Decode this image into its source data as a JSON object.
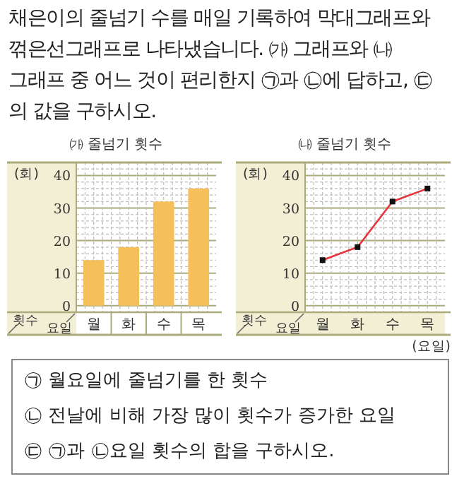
{
  "chart_data": [
    {
      "type": "other",
      "annotations": [
        "채은이의 줄넘기 수를 매일 기록하여 막대그래프와 꺾은선그래프로 나타냈습니다. ㈎ 그래프와 ㈏ 그래프 중 어느 것이 편리한지 ㉠과 ㉡에 답하고, ㉢의 값을 구하시오."
      ]
    },
    {
      "type": "bar",
      "title": "㈎ 줄넘기 횟수",
      "ylabel": "(회)",
      "annotations": [
        "횟수",
        "요일"
      ],
      "categories": [
        "월",
        "화",
        "수",
        "목"
      ],
      "values": [
        14,
        18,
        32,
        36
      ],
      "color": "#f5bf5a",
      "ylim": [
        -2,
        44
      ],
      "yticks": [
        0,
        10,
        20,
        30,
        40
      ],
      "grid": true
    },
    {
      "type": "line",
      "title": "㈏ 줄넘기 횟수",
      "ylabel": "(회)",
      "xlabel": "(요일)",
      "annotations": [
        "횟수",
        "요일"
      ],
      "categories": [
        "월",
        "화",
        "수",
        "목"
      ],
      "values": [
        14,
        18,
        32,
        36
      ],
      "color": "#e8343c",
      "marker": "square",
      "ylim": [
        -2,
        44
      ],
      "yticks": [
        0,
        10,
        20,
        30,
        40
      ],
      "grid": true
    },
    {
      "type": "other",
      "annotations": [
        "㉠ 월요일에 줄넘기를 한 횟수",
        "㉡ 전날에 비해 가장 많이 횟수가 증가한 요일",
        "㉢ ㉠과 ㉡요일 횟수의 합을 구하시오."
      ]
    }
  ]
}
